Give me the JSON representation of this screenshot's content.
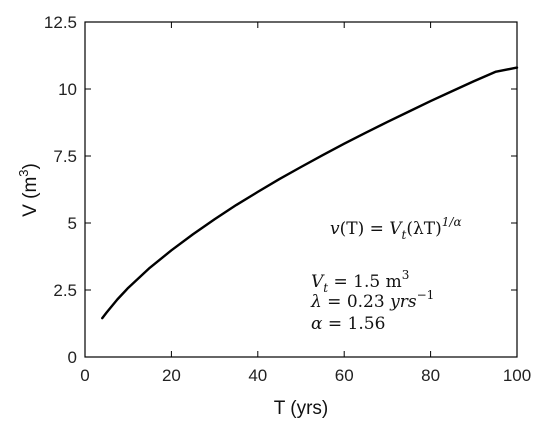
{
  "chart_data": {
    "type": "line",
    "title": "",
    "xlabel": "T (yrs)",
    "ylabel_text": "V (m",
    "ylabel_sup": "3",
    "ylabel_close": ")",
    "xlim": [
      0,
      100
    ],
    "ylim": [
      0,
      12.5
    ],
    "xticks": [
      0,
      20,
      40,
      60,
      80,
      100
    ],
    "xtick_labels": [
      "0",
      "20",
      "40",
      "60",
      "80",
      "100"
    ],
    "yticks": [
      0,
      2.5,
      5,
      7.5,
      10,
      12.5
    ],
    "ytick_labels": [
      "0",
      "2.5",
      "5",
      "7.5",
      "10",
      "12.5"
    ],
    "grid": false,
    "line_color": "#000000",
    "series": [
      {
        "x": [
          4,
          5,
          7.5,
          10,
          15,
          20,
          25,
          30,
          35,
          40,
          45,
          50,
          55,
          60,
          65,
          70,
          75,
          80,
          85,
          90,
          95,
          100
        ],
        "y": [
          1.45,
          1.66,
          2.15,
          2.58,
          3.33,
          3.98,
          4.58,
          5.14,
          5.67,
          6.16,
          6.64,
          7.09,
          7.53,
          7.96,
          8.37,
          8.77,
          9.16,
          9.55,
          9.92,
          10.29,
          10.64,
          10.8
        ]
      }
    ],
    "annotations": {
      "formula": {
        "v": "v",
        "arg": "(T) = ",
        "Vt_base": "V",
        "Vt_sub": "t",
        "paren": "(λT)",
        "exp": "1/α"
      },
      "param_vt": {
        "sym": "V",
        "sub": "t",
        "val": " = 1.5 m",
        "sup": "3"
      },
      "param_lambda": {
        "sym": "λ",
        "val": " = 0.23 ",
        "unit": "yrs",
        "sup": "−1"
      },
      "param_alpha": {
        "sym": "α",
        "val": " = 1.56"
      }
    }
  }
}
